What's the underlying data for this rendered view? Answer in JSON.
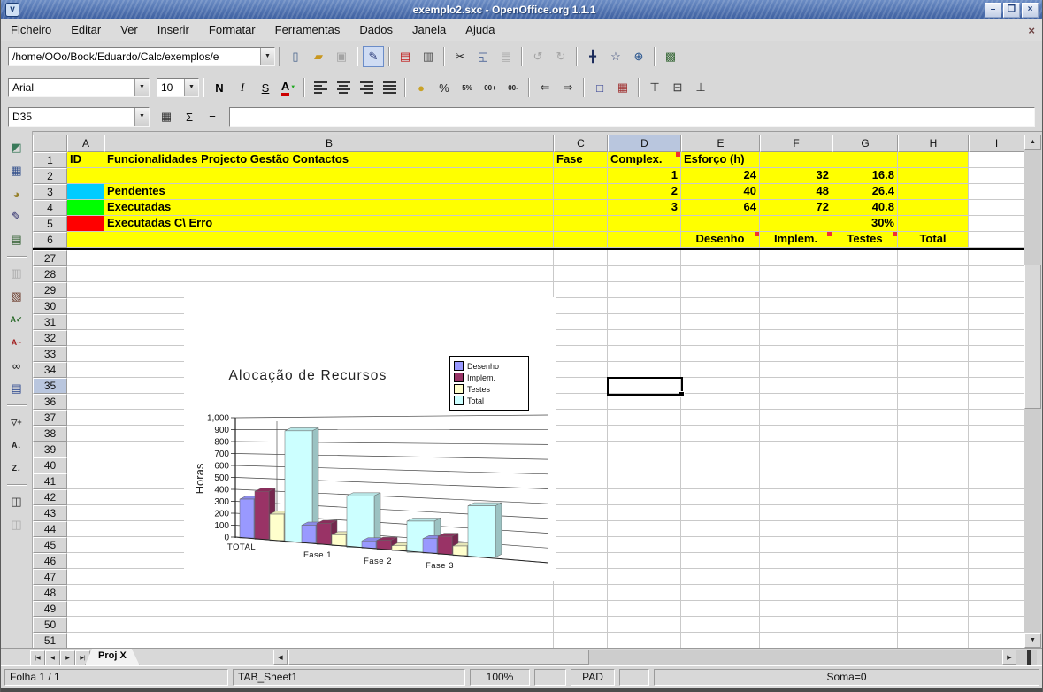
{
  "window": {
    "title": "exemplo2.sxc - OpenOffice.org 1.1.1",
    "buttons": {
      "minimize": "–",
      "maximize": "❐",
      "close": "×"
    },
    "icon_glyph": "v",
    "menu_close": "×"
  },
  "menu": {
    "items": [
      {
        "label": "Ficheiro",
        "accel": 0
      },
      {
        "label": "Editar",
        "accel": 0
      },
      {
        "label": "Ver",
        "accel": 0
      },
      {
        "label": "Inserir",
        "accel": 0
      },
      {
        "label": "Formatar",
        "accel": 1
      },
      {
        "label": "Ferramentas",
        "accel": 5
      },
      {
        "label": "Dados",
        "accel": 2
      },
      {
        "label": "Janela",
        "accel": 0
      },
      {
        "label": "Ajuda",
        "accel": 0
      }
    ]
  },
  "function_bar": {
    "url_value": "/home/OOo/Book/Eduardo/Calc/exemplos/e",
    "icons": [
      {
        "n": "new-document-icon",
        "g": "▯",
        "c": "#44608a"
      },
      {
        "n": "open-icon",
        "g": "▰",
        "c": "#c9971f"
      },
      {
        "n": "save-icon",
        "g": "▣",
        "c": "#555",
        "dis": true
      },
      {
        "sep": true
      },
      {
        "n": "edit-file-icon",
        "g": "✎",
        "c": "#2a3a7a",
        "pressed": true
      },
      {
        "sep": true
      },
      {
        "n": "export-pdf-icon",
        "g": "▤",
        "c": "#c01818"
      },
      {
        "n": "print-icon",
        "g": "▥",
        "c": "#4a4a4a"
      },
      {
        "sep": true
      },
      {
        "n": "cut-icon",
        "g": "✂",
        "c": "#222"
      },
      {
        "n": "copy-icon",
        "g": "◱",
        "c": "#33508c"
      },
      {
        "n": "paste-icon",
        "g": "▤",
        "c": "#555",
        "dis": true
      },
      {
        "sep": true
      },
      {
        "n": "undo-icon",
        "g": "↺",
        "c": "#555",
        "dis": true
      },
      {
        "n": "redo-icon",
        "g": "↻",
        "c": "#555",
        "dis": true
      },
      {
        "sep": true
      },
      {
        "n": "navigator-icon",
        "g": "╋",
        "c": "#1a2a5a"
      },
      {
        "n": "autopilot-icon",
        "g": "☆",
        "c": "#3a4a7a"
      },
      {
        "n": "datasources-icon",
        "g": "⊕",
        "c": "#23518c"
      },
      {
        "sep": true
      },
      {
        "n": "gallery-icon",
        "g": "▩",
        "c": "#3a6a3a"
      }
    ]
  },
  "format_bar": {
    "font_name": "Arial",
    "font_size": "10",
    "bold_label": "N",
    "italic_label": "I",
    "underline_label": "S",
    "font_color_label": "A",
    "icons_numfmt": [
      {
        "n": "currency-format-icon",
        "g": "●",
        "c": "#c9a227"
      },
      {
        "n": "percent-format-icon",
        "g": "%",
        "c": "#222"
      },
      {
        "n": "default-format-icon",
        "g": "5%",
        "c": "#222",
        "small": true
      },
      {
        "n": "add-decimal-icon",
        "g": "00+",
        "c": "#222",
        "small": true
      },
      {
        "n": "remove-decimal-icon",
        "g": "00-",
        "c": "#222",
        "small": true
      },
      {
        "sep": true
      },
      {
        "n": "decrease-indent-icon",
        "g": "⇐",
        "c": "#333"
      },
      {
        "n": "increase-indent-icon",
        "g": "⇒",
        "c": "#333"
      },
      {
        "sep": true
      },
      {
        "n": "borders-icon",
        "g": "□",
        "c": "#23318c"
      },
      {
        "n": "background-color-icon",
        "g": "▦",
        "c": "#a03333"
      },
      {
        "sep": true
      },
      {
        "n": "align-top-icon",
        "g": "⊤",
        "c": "#333"
      },
      {
        "n": "align-center-vertical-icon",
        "g": "⊟",
        "c": "#333"
      },
      {
        "n": "align-bottom-icon",
        "g": "⊥",
        "c": "#333"
      }
    ]
  },
  "formula_bar": {
    "cell_ref": "D35",
    "formula_value": "",
    "icons": [
      {
        "n": "function-list-icon",
        "g": "▦",
        "c": "#333"
      },
      {
        "n": "sum-icon",
        "g": "Σ",
        "c": "#111"
      },
      {
        "n": "function-icon",
        "g": "=",
        "c": "#111"
      }
    ]
  },
  "tools_bar": {
    "icons": [
      {
        "n": "insert-icon",
        "g": "◩",
        "c": "#3a7a5a"
      },
      {
        "n": "insert-cells-icon",
        "g": "▦",
        "c": "#33508c"
      },
      {
        "n": "insert-object-icon",
        "g": "◕",
        "c": "#96802a"
      },
      {
        "n": "draw-functions-icon",
        "g": "✎",
        "c": "#2a2a6a"
      },
      {
        "n": "form-functions-icon",
        "g": "▤",
        "c": "#2a5a2a"
      },
      {
        "sep": true
      },
      {
        "n": "insert-frame-icon",
        "g": "▥",
        "c": "#555",
        "dis": true
      },
      {
        "n": "form-design-icon",
        "g": "▧",
        "c": "#6a3a2a"
      },
      {
        "n": "spellcheck-icon",
        "g": "A✓",
        "c": "#2a6a2a",
        "small": true
      },
      {
        "n": "autospellcheck-icon",
        "g": "A~",
        "c": "#a22222",
        "small": true
      },
      {
        "n": "find-replace-icon",
        "g": "∞",
        "c": "#111"
      },
      {
        "n": "data-sources-icon",
        "g": "▤",
        "c": "#23418c"
      },
      {
        "sep": true
      },
      {
        "n": "autofilter-icon",
        "g": "▽+",
        "c": "#333",
        "small": true
      },
      {
        "n": "sort-ascending-icon",
        "g": "A↓",
        "c": "#222",
        "small": true
      },
      {
        "n": "sort-descending-icon",
        "g": "Z↓",
        "c": "#222",
        "small": true
      },
      {
        "sep": true
      },
      {
        "n": "group-icon",
        "g": "◫",
        "c": "#333"
      },
      {
        "n": "ungroup-icon",
        "g": "◫",
        "c": "#555",
        "dis": true
      }
    ]
  },
  "sheet": {
    "columns": [
      "A",
      "B",
      "C",
      "D",
      "E",
      "F",
      "G",
      "H",
      "I"
    ],
    "selected_column": "D",
    "selected_row": "35",
    "top_rows": [
      {
        "n": "1",
        "cells": {
          "A": {
            "t": "ID"
          },
          "B": {
            "t": "Funcionalidades Projecto Gestão Contactos"
          },
          "C": {
            "t": "Fase"
          },
          "D": {
            "t": "Complex.",
            "note": true
          },
          "E": {
            "t": "Esforço (h)"
          }
        }
      },
      {
        "n": "2",
        "cells": {
          "D": {
            "t": "1",
            "al": "r"
          },
          "E": {
            "t": "24",
            "al": "r"
          },
          "F": {
            "t": "32",
            "al": "r"
          },
          "G": {
            "t": "16.8",
            "al": "r"
          }
        }
      },
      {
        "n": "3",
        "cells": {
          "A": {
            "fill": "#00ccff"
          },
          "B": {
            "t": "Pendentes"
          },
          "D": {
            "t": "2",
            "al": "r"
          },
          "E": {
            "t": "40",
            "al": "r"
          },
          "F": {
            "t": "48",
            "al": "r"
          },
          "G": {
            "t": "26.4",
            "al": "r"
          }
        }
      },
      {
        "n": "4",
        "cells": {
          "A": {
            "fill": "#00ff00"
          },
          "B": {
            "t": "Executadas"
          },
          "D": {
            "t": "3",
            "al": "r"
          },
          "E": {
            "t": "64",
            "al": "r"
          },
          "F": {
            "t": "72",
            "al": "r"
          },
          "G": {
            "t": "40.8",
            "al": "r"
          }
        }
      },
      {
        "n": "5",
        "cells": {
          "A": {
            "fill": "#ff0000"
          },
          "B": {
            "t": "Executadas C\\ Erro"
          },
          "G": {
            "t": "30%",
            "al": "r"
          }
        }
      },
      {
        "n": "6",
        "cells": {
          "E": {
            "t": "Desenho",
            "al": "c",
            "note": true
          },
          "F": {
            "t": "Implem.",
            "al": "c",
            "note": true
          },
          "G": {
            "t": "Testes",
            "al": "c",
            "note": true
          },
          "H": {
            "t": "Total",
            "al": "c"
          }
        }
      }
    ],
    "bottom_rows": [
      "27",
      "28",
      "29",
      "30",
      "31",
      "32",
      "33",
      "34",
      "35",
      "36",
      "37",
      "38",
      "39",
      "40",
      "41",
      "42",
      "43",
      "44",
      "45",
      "46",
      "47",
      "48",
      "49",
      "50",
      "51"
    ]
  },
  "chart_data": {
    "type": "bar",
    "style": "3d",
    "title": "Alocação de Recursos",
    "ylabel": "Horas",
    "categories": [
      "TOTAL",
      "Fase 1",
      "Fase 2",
      "Fase 3"
    ],
    "series": [
      {
        "name": "Desenho",
        "color": "#9999ff",
        "values": [
          325,
          150,
          60,
          120
        ]
      },
      {
        "name": "Implem.",
        "color": "#993366",
        "values": [
          400,
          175,
          75,
          150
        ]
      },
      {
        "name": "Testes",
        "color": "#ffffcc",
        "values": [
          220,
          90,
          40,
          80
        ]
      },
      {
        "name": "Total",
        "color": "#ccffff",
        "values": [
          930,
          430,
          260,
          430
        ]
      }
    ],
    "ylim": [
      0,
      1000
    ],
    "yticks": [
      "0",
      "100",
      "200",
      "300",
      "400",
      "500",
      "600",
      "700",
      "800",
      "900",
      "1,000"
    ],
    "legend_position": "top-right",
    "grid": true
  },
  "tab_bar": {
    "sheet_tab": "Proj X",
    "nav": [
      {
        "n": "first-sheet-button",
        "g": "|◀"
      },
      {
        "n": "prev-sheet-button",
        "g": "◀"
      },
      {
        "n": "next-sheet-button",
        "g": "▶"
      },
      {
        "n": "last-sheet-button",
        "g": "▶|"
      }
    ]
  },
  "status_bar": {
    "sheet_info": "Folha 1  /  1",
    "page_style": "TAB_Sheet1",
    "zoom": "100%",
    "mode": "PAD",
    "sum": "Soma=0"
  }
}
